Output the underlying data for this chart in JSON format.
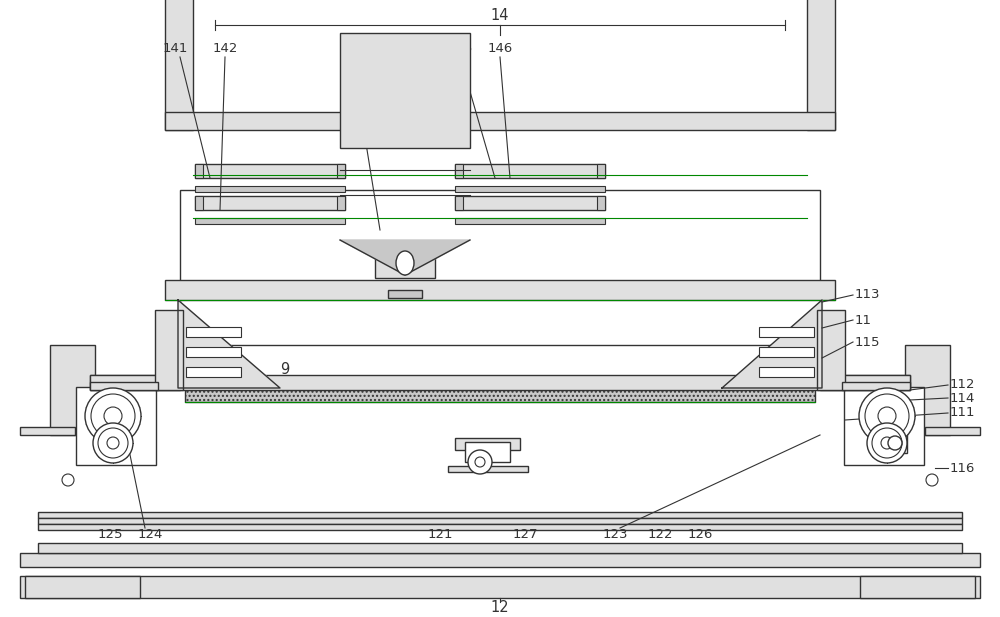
{
  "bg_color": "#ffffff",
  "line_color": "#333333",
  "green_color": "#008800",
  "light_gray": "#e0e0e0",
  "mid_gray": "#c8c8c8",
  "dark_gray": "#aaaaaa"
}
